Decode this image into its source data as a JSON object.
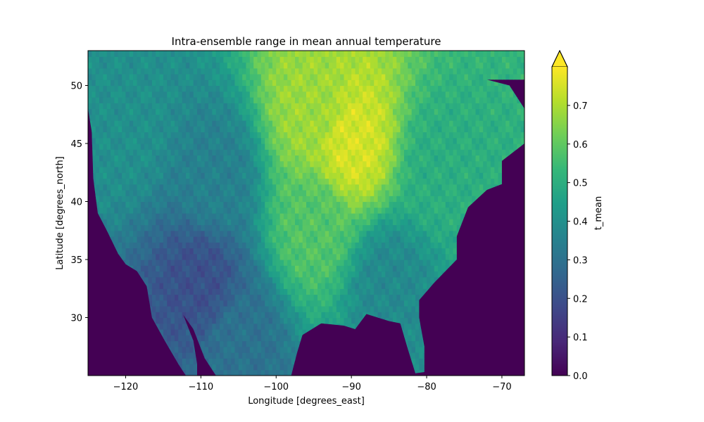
{
  "chart_data": {
    "type": "heatmap",
    "title": "Intra-ensemble range in mean annual temperature",
    "xlabel": "Longitude [degrees_east]",
    "ylabel": "Latitude [degrees_north]",
    "xlim": [
      -125,
      -67
    ],
    "ylim": [
      25,
      53
    ],
    "x_ticks": [
      -120,
      -110,
      -100,
      -90,
      -80,
      -70
    ],
    "x_tick_labels": [
      "−120",
      "−110",
      "−100",
      "−90",
      "−80",
      "−70"
    ],
    "y_ticks": [
      30,
      35,
      40,
      45,
      50
    ],
    "y_tick_labels": [
      "30",
      "35",
      "40",
      "45",
      "50"
    ],
    "grid": false,
    "colormap": "viridis",
    "colorbar": {
      "label": "t_mean",
      "range": [
        0.0,
        0.8
      ],
      "extend": "max",
      "ticks": [
        0.0,
        0.1,
        0.2,
        0.3,
        0.4,
        0.5,
        0.6,
        0.7
      ],
      "tick_labels": [
        "0.0",
        "0.1",
        "0.2",
        "0.3",
        "0.4",
        "0.5",
        "0.6",
        "0.7"
      ]
    },
    "background_value": 0.0,
    "regional_values": [
      {
        "region": "upper midwest (lon -90, lat 45)",
        "value": 0.75
      },
      {
        "region": "northern plains (lon -95, lat 48)",
        "value": 0.68
      },
      {
        "region": "central plains (lon -95, lat 38)",
        "value": 0.58
      },
      {
        "region": "great lakes / northeast (lon -78, lat 43)",
        "value": 0.5
      },
      {
        "region": "pacific northwest (lon -120, lat 47)",
        "value": 0.4
      },
      {
        "region": "rocky mountains (lon -108, lat 42)",
        "value": 0.35
      },
      {
        "region": "southeast (lon -85, lat 33)",
        "value": 0.38
      },
      {
        "region": "desert southwest (lon -110, lat 33)",
        "value": 0.2
      },
      {
        "region": "northern mexico (lon -105, lat 28)",
        "value": 0.3
      }
    ]
  },
  "colors": {
    "viridis_stops": [
      "#440154",
      "#482878",
      "#3e4989",
      "#31688e",
      "#26828e",
      "#1f9e89",
      "#35b779",
      "#6ece58",
      "#b5de2b",
      "#fde725"
    ],
    "ocean": "#440154"
  }
}
